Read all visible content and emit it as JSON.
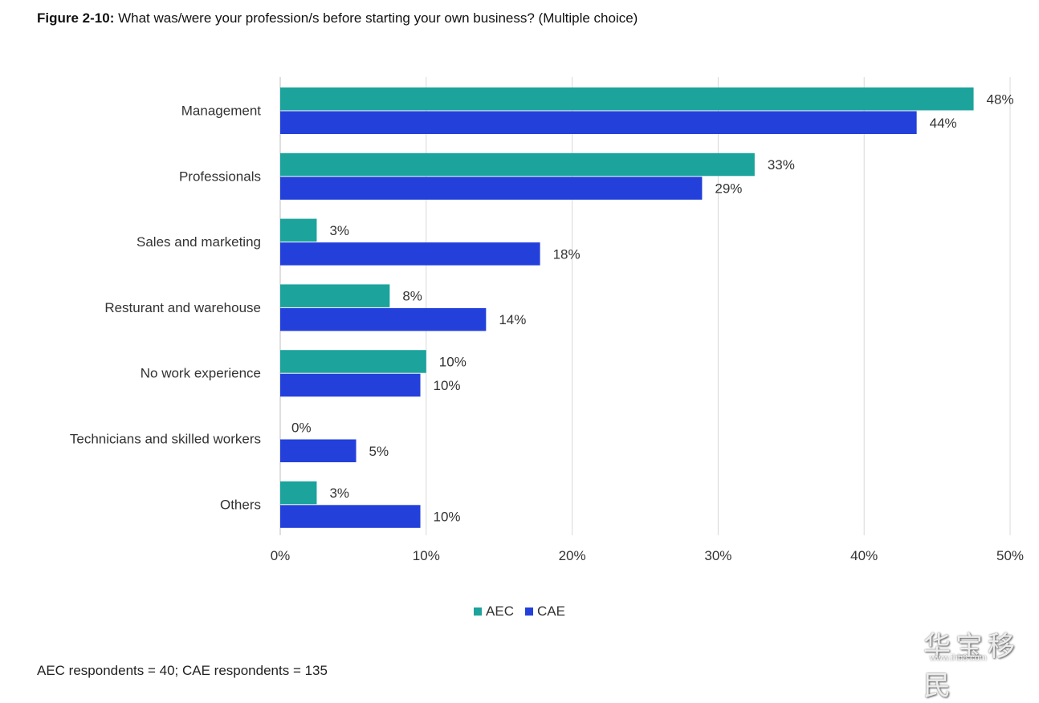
{
  "title": {
    "prefix": "Figure 2-10:",
    "text": " What was/were your profession/s before starting your own business? (Multiple choice)"
  },
  "chart_data": {
    "type": "bar",
    "orientation": "horizontal",
    "categories": [
      "Management",
      "Professionals",
      "Sales and marketing",
      "Resturant and warehouse",
      "No work experience",
      "Technicians and skilled workers",
      "Others"
    ],
    "series": [
      {
        "name": "AEC",
        "color": "#1BA39C",
        "values": [
          47.5,
          32.5,
          2.5,
          7.5,
          10,
          0,
          2.5
        ],
        "labels": [
          "48%",
          "33%",
          "3%",
          "8%",
          "10%",
          "0%",
          "3%"
        ]
      },
      {
        "name": "CAE",
        "color": "#2340DB",
        "values": [
          43.6,
          28.9,
          17.8,
          14.1,
          9.6,
          5.2,
          9.6
        ],
        "labels": [
          "44%",
          "29%",
          "18%",
          "14%",
          "10%",
          "5%",
          "10%"
        ]
      }
    ],
    "xlim": [
      0,
      50
    ],
    "xticks": [
      0,
      10,
      20,
      30,
      40,
      50
    ],
    "xtick_labels": [
      "0%",
      "10%",
      "20%",
      "30%",
      "40%",
      "50%"
    ],
    "grid": true,
    "legend": "bottom"
  },
  "legend": {
    "aec": "AEC",
    "cae": "CAE",
    "aec_color": "#1BA39C",
    "cae_color": "#2340DB"
  },
  "footnote": "AEC respondents = 40; CAE respondents = 135",
  "watermark": {
    "text": "华宝移民",
    "url": "www.ihb8.com"
  }
}
